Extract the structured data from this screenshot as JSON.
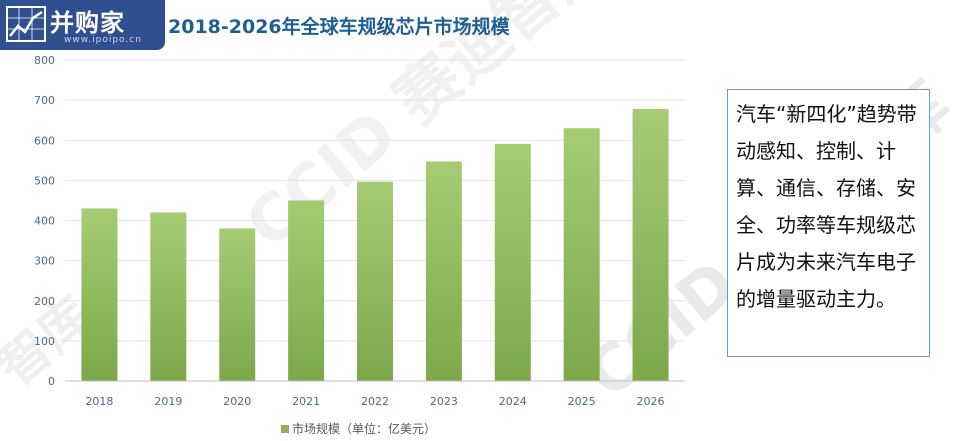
{
  "logo": {
    "name": "并购家",
    "url": "www.ipoipo.cn"
  },
  "watermarks": [
    "CCID 赛迪智库",
    "CCID 赛迪智库",
    "智库"
  ],
  "note": {
    "text": "汽车“新四化”趋势带动感知、控制、计算、通信、存储、安全、功率等车规级芯片成为未来汽车电子的增量驱动主力。"
  },
  "chart_data": {
    "type": "bar",
    "title": "2018-2026年全球车规级芯片市场规模",
    "categories": [
      "2018",
      "2019",
      "2020",
      "2021",
      "2022",
      "2023",
      "2024",
      "2025",
      "2026"
    ],
    "series": [
      {
        "name": "市场规模（单位：亿美元）",
        "values": [
          430,
          420,
          380,
          450,
          497,
          547,
          591,
          630,
          678
        ],
        "color": "#8db356"
      }
    ],
    "ylim": [
      0,
      800
    ],
    "yticks": [
      "0",
      "100",
      "200",
      "300",
      "400",
      "500",
      "600",
      "700",
      "800"
    ],
    "grid": true,
    "legend_position": "bottom",
    "xlabel": "",
    "ylabel": ""
  }
}
